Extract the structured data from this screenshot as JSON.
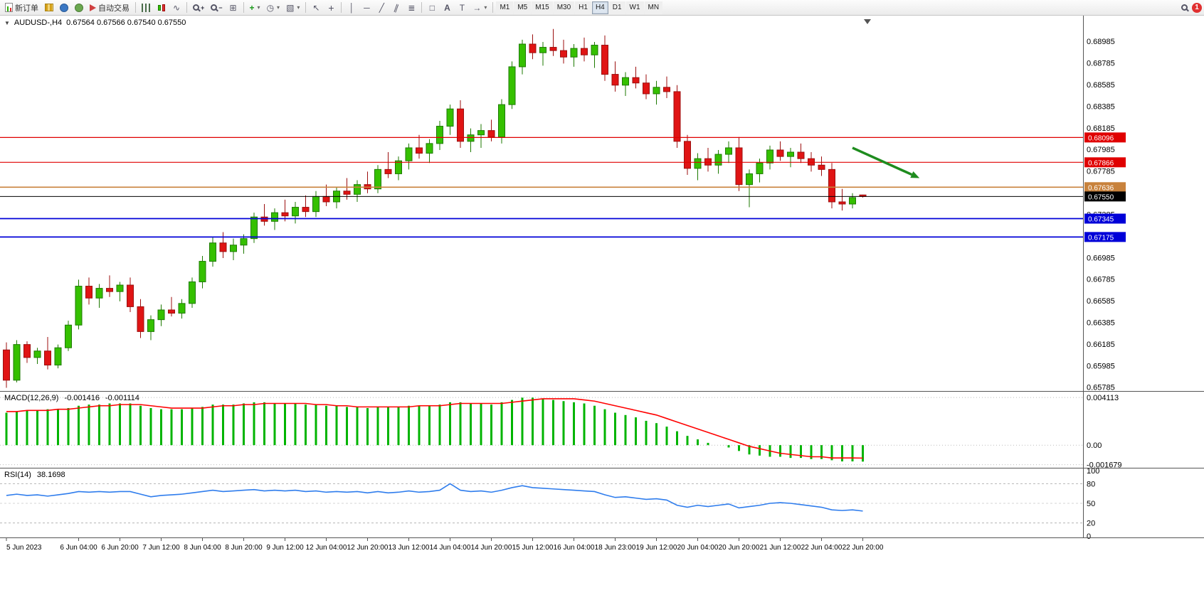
{
  "toolbar": {
    "new_order_label": "新订单",
    "autotrade_label": "自动交易",
    "text_tool_label": "A",
    "label_tool_label": "T",
    "timeframes": [
      "M1",
      "M5",
      "M15",
      "M30",
      "H1",
      "H4",
      "D1",
      "W1",
      "MN"
    ],
    "active_timeframe": "H4",
    "notification_count": "1"
  },
  "chart": {
    "symbol": "AUDUSD-,H4",
    "ohlc_line": "0.67564 0.67566 0.67540 0.67550",
    "macd_name": "MACD(12,26,9)",
    "macd_main": "-0.001416",
    "macd_signal": "-0.001114",
    "rsi_name": "RSI(14)",
    "rsi_value": "38.1698",
    "expand_triangle": "▼"
  },
  "chart_data": {
    "type": "candlestick",
    "symbol": "AUDUSD",
    "timeframe": "H4",
    "panels": [
      "price",
      "MACD",
      "RSI"
    ],
    "current": {
      "open": "0.67564",
      "high": "0.67566",
      "low": "0.67540",
      "close": "0.67550"
    },
    "colors": {
      "up_fill": "#35c000",
      "up_stroke": "#1d7a00",
      "down_fill": "#e01414",
      "down_stroke": "#9c0f0f",
      "macd_bar": "#00b400",
      "macd_signal": "#ff0000",
      "rsi_line": "#2f7ded",
      "level_red": "#e00000",
      "level_orange": "#c8823c",
      "level_blue": "#0000d8",
      "level_black": "#000000",
      "arrow_green": "#1e8c1e"
    },
    "price_axis": {
      "max": 0.6921,
      "min": 0.6575,
      "tick_step": 0.002,
      "labels": [
        "0.68985",
        "0.68785",
        "0.68585",
        "0.68385",
        "0.68185",
        "0.67985",
        "0.67785",
        "0.67585",
        "0.67385",
        "0.67185",
        "0.66985",
        "0.66785",
        "0.66585",
        "0.66385",
        "0.66185",
        "0.65985",
        "0.65785"
      ]
    },
    "levels": [
      {
        "price": 0.68096,
        "label": "0.68096",
        "color": "#e00000",
        "width": 1.2
      },
      {
        "price": 0.67866,
        "label": "0.67866",
        "color": "#e00000",
        "width": 1.2
      },
      {
        "price": 0.67636,
        "label": "0.67636",
        "color": "#c8823c",
        "width": 1.6
      },
      {
        "price": 0.6755,
        "label": "0.67550",
        "color": "#000000",
        "width": 1.0
      },
      {
        "price": 0.67345,
        "label": "0.67345",
        "color": "#0000d8",
        "width": 1.8
      },
      {
        "price": 0.67175,
        "label": "0.67175",
        "color": "#0000d8",
        "width": 1.8
      }
    ],
    "annotation_arrow": {
      "from_index": 82,
      "from_price": 0.68,
      "to_index": 88.5,
      "to_price": 0.6772,
      "color": "#1e8c1e"
    },
    "candles": [
      [
        0.6613,
        0.662,
        0.6578,
        0.6585
      ],
      [
        0.6585,
        0.6622,
        0.6583,
        0.6618
      ],
      [
        0.6618,
        0.6621,
        0.6601,
        0.6606
      ],
      [
        0.6606,
        0.6615,
        0.66,
        0.6612
      ],
      [
        0.6612,
        0.6625,
        0.6595,
        0.6599
      ],
      [
        0.6599,
        0.6618,
        0.6596,
        0.6615
      ],
      [
        0.6615,
        0.664,
        0.6612,
        0.6636
      ],
      [
        0.6636,
        0.6678,
        0.6632,
        0.6672
      ],
      [
        0.6672,
        0.668,
        0.6655,
        0.6661
      ],
      [
        0.6661,
        0.6674,
        0.6652,
        0.667
      ],
      [
        0.667,
        0.6682,
        0.6662,
        0.6667
      ],
      [
        0.6667,
        0.6676,
        0.6658,
        0.6673
      ],
      [
        0.6673,
        0.668,
        0.6648,
        0.6653
      ],
      [
        0.6653,
        0.666,
        0.6624,
        0.663
      ],
      [
        0.663,
        0.6645,
        0.6622,
        0.6641
      ],
      [
        0.6641,
        0.6655,
        0.6635,
        0.665
      ],
      [
        0.665,
        0.6662,
        0.6644,
        0.6647
      ],
      [
        0.6647,
        0.666,
        0.6642,
        0.6656
      ],
      [
        0.6656,
        0.668,
        0.6652,
        0.6676
      ],
      [
        0.6676,
        0.67,
        0.667,
        0.6695
      ],
      [
        0.6695,
        0.6718,
        0.669,
        0.6712
      ],
      [
        0.6712,
        0.6722,
        0.6698,
        0.6704
      ],
      [
        0.6704,
        0.6716,
        0.6696,
        0.671
      ],
      [
        0.671,
        0.672,
        0.6702,
        0.6716
      ],
      [
        0.6716,
        0.674,
        0.6712,
        0.6736
      ],
      [
        0.6736,
        0.6748,
        0.6728,
        0.6732
      ],
      [
        0.6732,
        0.6744,
        0.6724,
        0.674
      ],
      [
        0.674,
        0.6752,
        0.6732,
        0.6737
      ],
      [
        0.6737,
        0.675,
        0.673,
        0.6745
      ],
      [
        0.6745,
        0.6756,
        0.6736,
        0.6741
      ],
      [
        0.6741,
        0.676,
        0.6736,
        0.6755
      ],
      [
        0.6755,
        0.6766,
        0.6746,
        0.675
      ],
      [
        0.675,
        0.6764,
        0.6744,
        0.676
      ],
      [
        0.676,
        0.6772,
        0.6752,
        0.6757
      ],
      [
        0.6757,
        0.677,
        0.675,
        0.6766
      ],
      [
        0.6766,
        0.6778,
        0.6758,
        0.6762
      ],
      [
        0.6762,
        0.6784,
        0.6758,
        0.678
      ],
      [
        0.678,
        0.6796,
        0.6772,
        0.6776
      ],
      [
        0.6776,
        0.6792,
        0.677,
        0.6788
      ],
      [
        0.6788,
        0.6804,
        0.678,
        0.68
      ],
      [
        0.68,
        0.6812,
        0.679,
        0.6795
      ],
      [
        0.6795,
        0.6808,
        0.6786,
        0.6804
      ],
      [
        0.6804,
        0.6825,
        0.6798,
        0.682
      ],
      [
        0.682,
        0.684,
        0.6812,
        0.6836
      ],
      [
        0.6836,
        0.6844,
        0.68,
        0.6806
      ],
      [
        0.6806,
        0.6818,
        0.6796,
        0.6812
      ],
      [
        0.6812,
        0.6822,
        0.68,
        0.6816
      ],
      [
        0.6816,
        0.6826,
        0.6806,
        0.681
      ],
      [
        0.681,
        0.6845,
        0.6804,
        0.684
      ],
      [
        0.684,
        0.688,
        0.6836,
        0.6875
      ],
      [
        0.6875,
        0.69,
        0.6868,
        0.6896
      ],
      [
        0.6896,
        0.6905,
        0.6882,
        0.6888
      ],
      [
        0.6888,
        0.6898,
        0.6876,
        0.6893
      ],
      [
        0.6893,
        0.691,
        0.6885,
        0.689
      ],
      [
        0.689,
        0.69,
        0.6878,
        0.6884
      ],
      [
        0.6884,
        0.6896,
        0.6875,
        0.6892
      ],
      [
        0.6892,
        0.6902,
        0.688,
        0.6886
      ],
      [
        0.6886,
        0.6898,
        0.6874,
        0.6895
      ],
      [
        0.6895,
        0.6904,
        0.6862,
        0.6868
      ],
      [
        0.6868,
        0.688,
        0.6852,
        0.6858
      ],
      [
        0.6858,
        0.687,
        0.6848,
        0.6865
      ],
      [
        0.6865,
        0.6875,
        0.6855,
        0.686
      ],
      [
        0.686,
        0.6868,
        0.6845,
        0.685
      ],
      [
        0.685,
        0.6862,
        0.684,
        0.6856
      ],
      [
        0.6856,
        0.6866,
        0.6846,
        0.6852
      ],
      [
        0.6852,
        0.6858,
        0.68,
        0.6806
      ],
      [
        0.6806,
        0.6812,
        0.6775,
        0.6781
      ],
      [
        0.6781,
        0.6795,
        0.677,
        0.679
      ],
      [
        0.679,
        0.68,
        0.6778,
        0.6784
      ],
      [
        0.6784,
        0.6798,
        0.6776,
        0.6794
      ],
      [
        0.6794,
        0.6806,
        0.6786,
        0.68
      ],
      [
        0.68,
        0.681,
        0.676,
        0.6766
      ],
      [
        0.6766,
        0.678,
        0.6745,
        0.6776
      ],
      [
        0.6776,
        0.679,
        0.6768,
        0.6786
      ],
      [
        0.6786,
        0.6802,
        0.678,
        0.6798
      ],
      [
        0.6798,
        0.6806,
        0.6788,
        0.6792
      ],
      [
        0.6792,
        0.68,
        0.6782,
        0.6796
      ],
      [
        0.6796,
        0.6804,
        0.6786,
        0.679
      ],
      [
        0.679,
        0.6796,
        0.6778,
        0.6784
      ],
      [
        0.6784,
        0.6792,
        0.6774,
        0.678
      ],
      [
        0.678,
        0.6786,
        0.6744,
        0.675
      ],
      [
        0.675,
        0.6762,
        0.6742,
        0.6748
      ],
      [
        0.6748,
        0.6758,
        0.6744,
        0.6754
      ],
      [
        0.67564,
        0.67566,
        0.6754,
        0.6755
      ]
    ],
    "time_labels": [
      {
        "index": 0,
        "label": "5 Jun 2023"
      },
      {
        "index": 7,
        "label": "6 Jun 04:00"
      },
      {
        "index": 11,
        "label": "6 Jun 20:00"
      },
      {
        "index": 15,
        "label": "7 Jun 12:00"
      },
      {
        "index": 19,
        "label": "8 Jun 04:00"
      },
      {
        "index": 23,
        "label": "8 Jun 20:00"
      },
      {
        "index": 27,
        "label": "9 Jun 12:00"
      },
      {
        "index": 31,
        "label": "12 Jun 04:00"
      },
      {
        "index": 35,
        "label": "12 Jun 20:00"
      },
      {
        "index": 39,
        "label": "13 Jun 12:00"
      },
      {
        "index": 43,
        "label": "14 Jun 04:00"
      },
      {
        "index": 47,
        "label": "14 Jun 20:00"
      },
      {
        "index": 51,
        "label": "15 Jun 12:00"
      },
      {
        "index": 55,
        "label": "16 Jun 04:00"
      },
      {
        "index": 59,
        "label": "18 Jun 23:00"
      },
      {
        "index": 63,
        "label": "19 Jun 12:00"
      },
      {
        "index": 67,
        "label": "20 Jun 04:00"
      },
      {
        "index": 71,
        "label": "20 Jun 20:00"
      },
      {
        "index": 75,
        "label": "21 Jun 12:00"
      },
      {
        "index": 79,
        "label": "22 Jun 04:00"
      },
      {
        "index": 83,
        "label": "22 Jun 20:00"
      }
    ],
    "macd": {
      "name": "MACD(12,26,9)",
      "value_main": "-0.001416",
      "value_signal": "-0.001114",
      "max": 0.00455,
      "min": -0.00195,
      "axis_labels": [
        "0.004113",
        "0.00",
        "-0.001679"
      ],
      "axis_values": [
        0.004113,
        0,
        -0.001679
      ],
      "histogram": [
        0.0028,
        0.0029,
        0.003,
        0.003,
        0.0031,
        0.0031,
        0.0032,
        0.0034,
        0.0035,
        0.0035,
        0.0036,
        0.0036,
        0.0036,
        0.0034,
        0.0032,
        0.0031,
        0.0031,
        0.0031,
        0.0032,
        0.0033,
        0.0035,
        0.0035,
        0.0035,
        0.0036,
        0.0037,
        0.0037,
        0.0036,
        0.0036,
        0.0036,
        0.0035,
        0.0035,
        0.0034,
        0.0034,
        0.0033,
        0.0033,
        0.0032,
        0.0033,
        0.0033,
        0.0033,
        0.0034,
        0.0034,
        0.0034,
        0.0035,
        0.0037,
        0.0037,
        0.0036,
        0.0036,
        0.0035,
        0.0037,
        0.0039,
        0.0041,
        0.0041,
        0.004,
        0.0039,
        0.0038,
        0.0037,
        0.0036,
        0.0034,
        0.0031,
        0.0028,
        0.0026,
        0.0024,
        0.0021,
        0.0019,
        0.0016,
        0.0012,
        0.0008,
        0.0005,
        0.0002,
        0.0,
        -0.0002,
        -0.0005,
        -0.0008,
        -0.0009,
        -0.001,
        -0.001,
        -0.0011,
        -0.0011,
        -0.0012,
        -0.0012,
        -0.0013,
        -0.0014,
        -0.0014,
        -0.001416
      ],
      "signal": [
        0.0029,
        0.0029,
        0.003,
        0.003,
        0.003,
        0.0031,
        0.0031,
        0.0032,
        0.0033,
        0.0034,
        0.0034,
        0.0035,
        0.0035,
        0.0035,
        0.0034,
        0.0033,
        0.0032,
        0.0032,
        0.0032,
        0.0032,
        0.0033,
        0.0034,
        0.0034,
        0.0035,
        0.0035,
        0.0036,
        0.0036,
        0.0036,
        0.0036,
        0.0036,
        0.0035,
        0.0035,
        0.0034,
        0.0034,
        0.0033,
        0.0033,
        0.0033,
        0.0033,
        0.0033,
        0.0033,
        0.0034,
        0.0034,
        0.0034,
        0.0035,
        0.0036,
        0.0036,
        0.0036,
        0.0036,
        0.0036,
        0.0037,
        0.0038,
        0.0039,
        0.004,
        0.004,
        0.004,
        0.004,
        0.0039,
        0.0038,
        0.0036,
        0.0034,
        0.0032,
        0.003,
        0.0028,
        0.0026,
        0.0023,
        0.002,
        0.0017,
        0.0014,
        0.0011,
        0.0008,
        0.0005,
        0.0002,
        -0.0001,
        -0.0003,
        -0.0005,
        -0.0007,
        -0.0008,
        -0.0009,
        -0.001,
        -0.001,
        -0.0011,
        -0.0011,
        -0.0011,
        -0.001114
      ]
    },
    "rsi": {
      "name": "RSI(14)",
      "value": "38.1698",
      "axis_labels": [
        "100",
        "80",
        "50",
        "20",
        "0"
      ],
      "axis_values": [
        100,
        80,
        50,
        20,
        0
      ],
      "levels": [
        80,
        50,
        20
      ],
      "series": [
        62,
        64,
        62,
        63,
        61,
        63,
        65,
        68,
        67,
        68,
        67,
        68,
        68,
        64,
        60,
        62,
        63,
        64,
        66,
        68,
        70,
        68,
        69,
        70,
        71,
        69,
        70,
        69,
        70,
        68,
        69,
        67,
        68,
        67,
        68,
        66,
        68,
        66,
        67,
        69,
        67,
        68,
        70,
        80,
        70,
        68,
        69,
        67,
        70,
        74,
        77,
        74,
        73,
        72,
        71,
        70,
        69,
        68,
        63,
        59,
        60,
        58,
        56,
        57,
        55,
        47,
        44,
        47,
        45,
        47,
        49,
        43,
        45,
        47,
        50,
        51,
        50,
        48,
        46,
        44,
        40,
        39,
        40,
        38.17
      ]
    }
  }
}
